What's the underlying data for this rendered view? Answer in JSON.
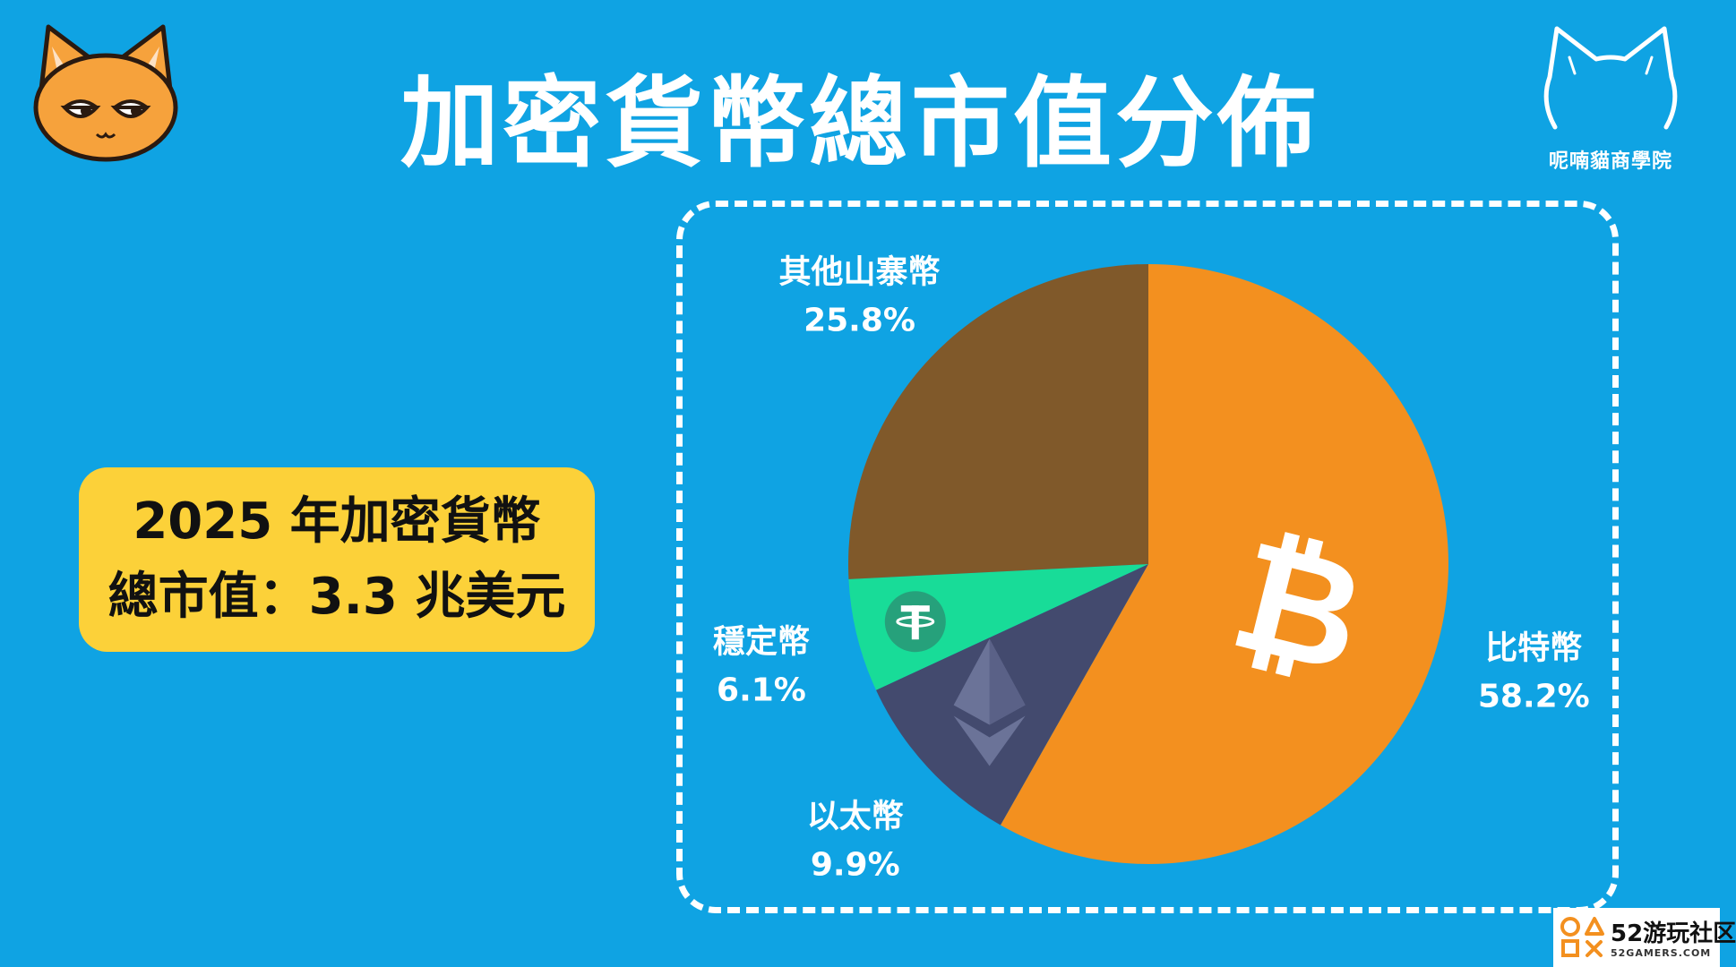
{
  "title": "加密貨幣總市值分佈",
  "brand": {
    "name": "呢喃貓商學院"
  },
  "summary": {
    "line1": "2025 年加密貨幣",
    "line2": "總市值：3.3 兆美元"
  },
  "watermark": {
    "main": "52游玩社区",
    "sub": "52GAMERS.COM"
  },
  "colors": {
    "background": "#0fa3e3",
    "summary_box": "#fcd139",
    "bitcoin": "#f3901f",
    "ethereum": "#434a6e",
    "stablecoin": "#18dc98",
    "altcoins": "#80592a"
  },
  "chart_data": {
    "type": "pie",
    "title": "加密貨幣總市值分佈",
    "start": "12 o'clock",
    "direction": "clockwise",
    "slices": [
      {
        "label": "比特幣",
        "value": 58.2,
        "value_label": "58.2%",
        "color": "#f3901f",
        "icon": "bitcoin-icon"
      },
      {
        "label": "以太幣",
        "value": 9.9,
        "value_label": "9.9%",
        "color": "#434a6e",
        "icon": "ethereum-icon"
      },
      {
        "label": "穩定幣",
        "value": 6.1,
        "value_label": "6.1%",
        "color": "#18dc98",
        "icon": "tether-icon"
      },
      {
        "label": "其他山寨幣",
        "value": 25.8,
        "value_label": "25.8%",
        "color": "#80592a",
        "icon": ""
      }
    ]
  }
}
